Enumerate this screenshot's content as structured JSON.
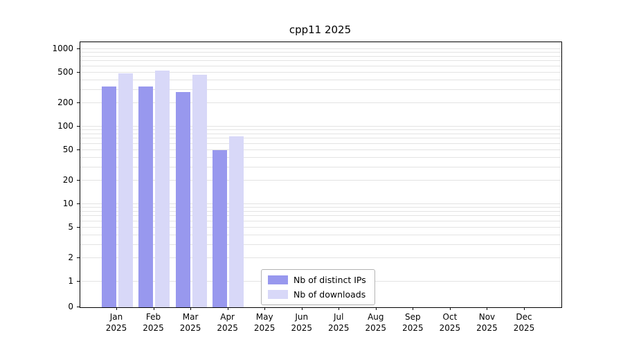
{
  "chart_data": {
    "type": "bar",
    "title": "cpp11 2025",
    "categories": [
      "Jan",
      "Feb",
      "Mar",
      "Apr",
      "May",
      "Jun",
      "Jul",
      "Aug",
      "Sep",
      "Oct",
      "Nov",
      "Dec"
    ],
    "year": "2025",
    "series": [
      {
        "name": "Nb of distinct IPs",
        "color": "#9898ee",
        "values": [
          330,
          330,
          280,
          50,
          0,
          0,
          0,
          0,
          0,
          0,
          0,
          0
        ]
      },
      {
        "name": "Nb of downloads",
        "color": "#d8d8f8",
        "values": [
          490,
          530,
          470,
          75,
          0,
          0,
          0,
          0,
          0,
          0,
          0,
          0
        ]
      }
    ],
    "xlabel": "",
    "ylabel": "",
    "yscale": "symlog",
    "yticks": [
      0,
      1,
      2,
      5,
      10,
      20,
      50,
      100,
      200,
      500,
      1000
    ],
    "ylim": [
      0,
      1250
    ],
    "grid": "horizontal-log-minor",
    "legend_position": "lower-center-inside"
  }
}
